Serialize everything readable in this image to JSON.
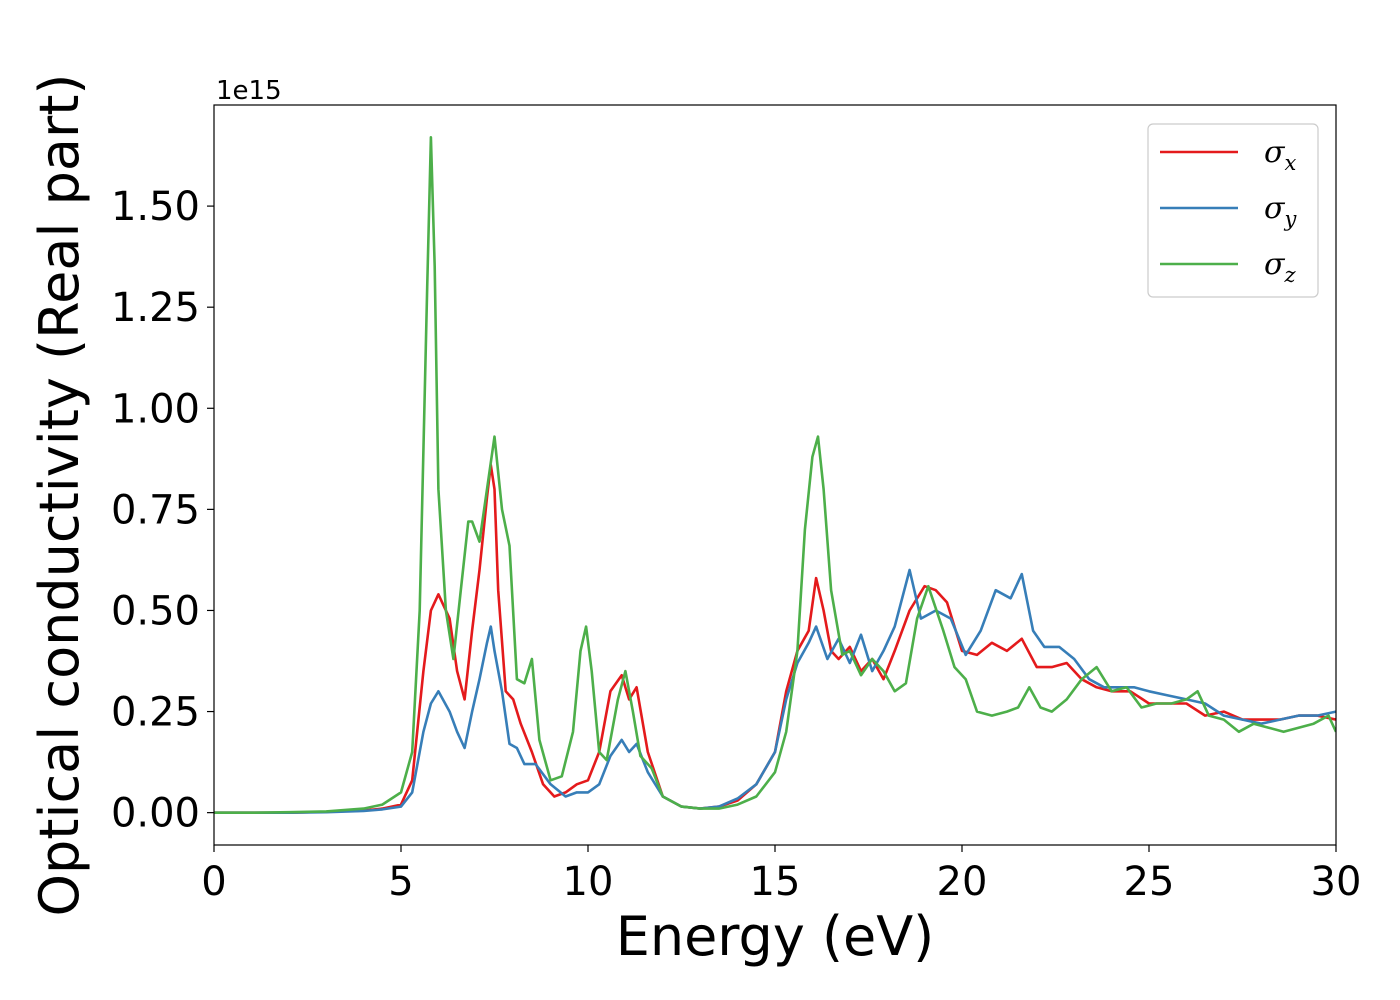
{
  "chart_data": {
    "type": "line",
    "title": "",
    "xlabel": "Energy (eV)",
    "ylabel": "Optical conductivity (Real part)",
    "y_offset_label": "1e15",
    "xlim": [
      0,
      30
    ],
    "ylim": [
      -0.08,
      1.75
    ],
    "xticks": [
      0,
      5,
      10,
      15,
      20,
      25,
      30
    ],
    "xtick_labels": [
      "0",
      "5",
      "10",
      "15",
      "20",
      "25",
      "30"
    ],
    "yticks": [
      0.0,
      0.25,
      0.5,
      0.75,
      1.0,
      1.25,
      1.5
    ],
    "ytick_labels": [
      "0.00",
      "0.25",
      "0.50",
      "0.75",
      "1.00",
      "1.25",
      "1.50"
    ],
    "grid": false,
    "legend_position": "top-right",
    "series": [
      {
        "name": "σx",
        "symbol": "σ",
        "subscript": "x",
        "color": "#e41a1c",
        "x": [
          0,
          1,
          2,
          3,
          4,
          4.5,
          5,
          5.3,
          5.6,
          5.8,
          6.0,
          6.3,
          6.5,
          6.7,
          6.9,
          7.1,
          7.3,
          7.4,
          7.5,
          7.6,
          7.8,
          8.0,
          8.2,
          8.5,
          8.8,
          9.1,
          9.4,
          9.7,
          10.0,
          10.3,
          10.6,
          10.9,
          11.1,
          11.3,
          11.6,
          12.0,
          12.5,
          13.0,
          13.5,
          14.0,
          14.5,
          15.0,
          15.3,
          15.6,
          15.9,
          16.1,
          16.3,
          16.5,
          16.7,
          17.0,
          17.3,
          17.6,
          17.9,
          18.2,
          18.6,
          19.0,
          19.3,
          19.6,
          20.0,
          20.4,
          20.8,
          21.2,
          21.6,
          22.0,
          22.4,
          22.8,
          23.2,
          23.6,
          24.0,
          24.5,
          25.0,
          25.5,
          26.0,
          26.5,
          27.0,
          27.5,
          28.0,
          28.5,
          29.0,
          29.5,
          30.0
        ],
        "values": [
          0.0,
          0.0,
          0.0,
          0.002,
          0.005,
          0.01,
          0.02,
          0.08,
          0.35,
          0.5,
          0.54,
          0.48,
          0.35,
          0.28,
          0.45,
          0.6,
          0.78,
          0.86,
          0.8,
          0.55,
          0.3,
          0.28,
          0.22,
          0.15,
          0.07,
          0.04,
          0.05,
          0.07,
          0.08,
          0.15,
          0.3,
          0.34,
          0.28,
          0.31,
          0.15,
          0.04,
          0.015,
          0.01,
          0.015,
          0.03,
          0.07,
          0.15,
          0.3,
          0.4,
          0.45,
          0.58,
          0.5,
          0.4,
          0.38,
          0.41,
          0.35,
          0.38,
          0.33,
          0.4,
          0.5,
          0.56,
          0.55,
          0.52,
          0.4,
          0.39,
          0.42,
          0.4,
          0.43,
          0.36,
          0.36,
          0.37,
          0.33,
          0.31,
          0.3,
          0.3,
          0.27,
          0.27,
          0.27,
          0.24,
          0.25,
          0.23,
          0.23,
          0.23,
          0.24,
          0.24,
          0.23
        ]
      },
      {
        "name": "σy",
        "symbol": "σ",
        "subscript": "y",
        "color": "#377eb8",
        "x": [
          0,
          1,
          2,
          3,
          4,
          4.5,
          5,
          5.3,
          5.6,
          5.8,
          6.0,
          6.3,
          6.5,
          6.7,
          6.9,
          7.1,
          7.3,
          7.4,
          7.5,
          7.7,
          7.9,
          8.1,
          8.3,
          8.6,
          9.0,
          9.4,
          9.7,
          10.0,
          10.3,
          10.6,
          10.9,
          11.1,
          11.3,
          11.6,
          12.0,
          12.5,
          13.0,
          13.5,
          14.0,
          14.5,
          15.0,
          15.3,
          15.6,
          15.9,
          16.1,
          16.4,
          16.7,
          17.0,
          17.3,
          17.6,
          17.9,
          18.2,
          18.6,
          18.9,
          19.3,
          19.7,
          20.1,
          20.5,
          20.9,
          21.3,
          21.6,
          21.9,
          22.2,
          22.6,
          23.0,
          23.4,
          23.8,
          24.2,
          24.6,
          25.0,
          25.5,
          26.0,
          26.5,
          27.0,
          27.5,
          28.0,
          28.5,
          29.0,
          29.5,
          30.0
        ],
        "values": [
          0.0,
          0.0,
          0.0,
          0.001,
          0.004,
          0.008,
          0.015,
          0.05,
          0.2,
          0.27,
          0.3,
          0.25,
          0.2,
          0.16,
          0.25,
          0.33,
          0.42,
          0.46,
          0.4,
          0.3,
          0.17,
          0.16,
          0.12,
          0.12,
          0.07,
          0.04,
          0.05,
          0.05,
          0.07,
          0.14,
          0.18,
          0.15,
          0.17,
          0.1,
          0.04,
          0.015,
          0.01,
          0.015,
          0.035,
          0.07,
          0.15,
          0.28,
          0.37,
          0.42,
          0.46,
          0.38,
          0.43,
          0.37,
          0.44,
          0.35,
          0.4,
          0.46,
          0.6,
          0.48,
          0.5,
          0.48,
          0.39,
          0.45,
          0.55,
          0.53,
          0.59,
          0.45,
          0.41,
          0.41,
          0.38,
          0.33,
          0.31,
          0.31,
          0.31,
          0.3,
          0.29,
          0.28,
          0.27,
          0.24,
          0.23,
          0.22,
          0.23,
          0.24,
          0.24,
          0.25
        ]
      },
      {
        "name": "σz",
        "symbol": "σ",
        "subscript": "z",
        "color": "#4daf4a",
        "x": [
          0,
          1,
          2,
          3,
          4,
          4.5,
          5,
          5.3,
          5.5,
          5.7,
          5.8,
          5.9,
          6.0,
          6.2,
          6.4,
          6.6,
          6.8,
          6.9,
          7.1,
          7.3,
          7.5,
          7.7,
          7.9,
          8.1,
          8.3,
          8.5,
          8.7,
          9.0,
          9.3,
          9.6,
          9.8,
          9.95,
          10.1,
          10.3,
          10.5,
          10.8,
          11.0,
          11.2,
          11.4,
          11.7,
          12.0,
          12.5,
          13.0,
          13.5,
          14.0,
          14.5,
          15.0,
          15.3,
          15.6,
          15.8,
          16.0,
          16.15,
          16.3,
          16.5,
          16.8,
          17.0,
          17.3,
          17.6,
          17.9,
          18.2,
          18.5,
          18.8,
          19.1,
          19.5,
          19.8,
          20.1,
          20.4,
          20.8,
          21.2,
          21.5,
          21.8,
          22.1,
          22.4,
          22.8,
          23.2,
          23.6,
          24.0,
          24.4,
          24.8,
          25.2,
          25.6,
          26.0,
          26.3,
          26.6,
          27.0,
          27.4,
          27.8,
          28.2,
          28.6,
          29.0,
          29.4,
          29.8,
          30.0
        ],
        "values": [
          0.0,
          0.0,
          0.001,
          0.003,
          0.01,
          0.02,
          0.05,
          0.15,
          0.5,
          1.3,
          1.67,
          1.35,
          0.8,
          0.5,
          0.38,
          0.55,
          0.72,
          0.72,
          0.67,
          0.8,
          0.93,
          0.75,
          0.66,
          0.33,
          0.32,
          0.38,
          0.18,
          0.08,
          0.09,
          0.2,
          0.4,
          0.46,
          0.35,
          0.15,
          0.13,
          0.28,
          0.35,
          0.25,
          0.14,
          0.11,
          0.04,
          0.015,
          0.01,
          0.01,
          0.02,
          0.04,
          0.1,
          0.2,
          0.4,
          0.7,
          0.88,
          0.93,
          0.8,
          0.55,
          0.39,
          0.4,
          0.34,
          0.38,
          0.35,
          0.3,
          0.32,
          0.48,
          0.56,
          0.45,
          0.36,
          0.33,
          0.25,
          0.24,
          0.25,
          0.26,
          0.31,
          0.26,
          0.25,
          0.28,
          0.33,
          0.36,
          0.3,
          0.31,
          0.26,
          0.27,
          0.27,
          0.28,
          0.3,
          0.24,
          0.23,
          0.2,
          0.22,
          0.21,
          0.2,
          0.21,
          0.22,
          0.24,
          0.2
        ]
      }
    ]
  }
}
